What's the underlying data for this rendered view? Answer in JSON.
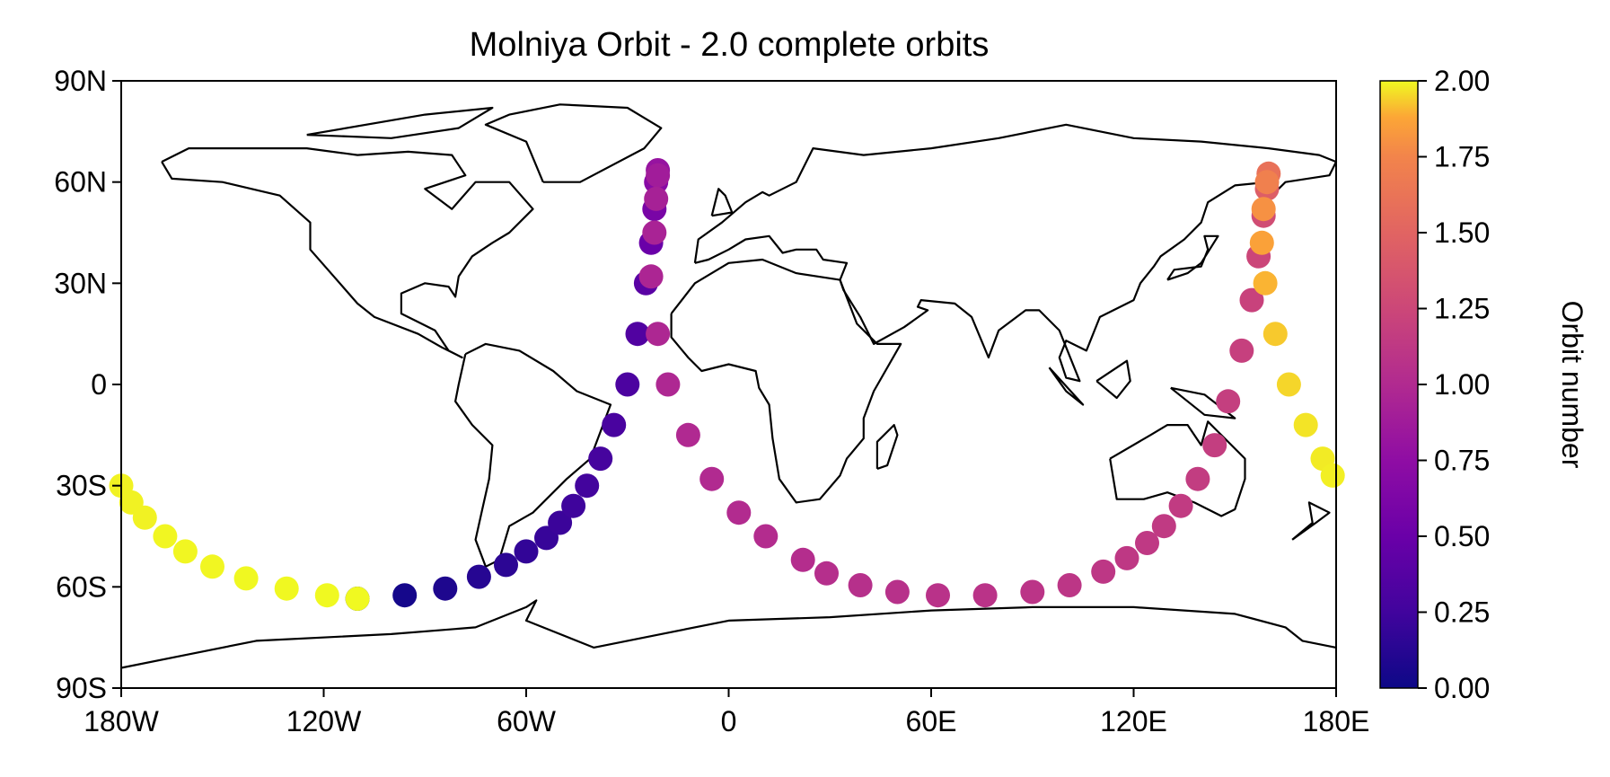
{
  "chart_data": {
    "type": "scatter",
    "title": "Molniya Orbit - 2.0 complete orbits",
    "xlabel": "",
    "ylabel": "",
    "xlim": [
      -180,
      180
    ],
    "ylim": [
      -90,
      90
    ],
    "x_ticks": [
      {
        "value": -180,
        "label": "180W"
      },
      {
        "value": -120,
        "label": "120W"
      },
      {
        "value": -60,
        "label": "60W"
      },
      {
        "value": 0,
        "label": "0"
      },
      {
        "value": 60,
        "label": "60E"
      },
      {
        "value": 120,
        "label": "120E"
      },
      {
        "value": 180,
        "label": "180E"
      }
    ],
    "y_ticks": [
      {
        "value": 90,
        "label": "90N"
      },
      {
        "value": 60,
        "label": "60N"
      },
      {
        "value": 30,
        "label": "30N"
      },
      {
        "value": 0,
        "label": "0"
      },
      {
        "value": -30,
        "label": "30S"
      },
      {
        "value": -60,
        "label": "60S"
      },
      {
        "value": -90,
        "label": "90S"
      }
    ],
    "colorbar": {
      "label": "Orbit number",
      "colormap": "plasma",
      "range": [
        0,
        2
      ],
      "ticks": [
        "0.00",
        "0.25",
        "0.50",
        "0.75",
        "1.00",
        "1.25",
        "1.50",
        "1.75",
        "2.00"
      ]
    },
    "background_layer": "coastlines",
    "grid": false,
    "series": [
      {
        "values": [
          {
            "lon": -110,
            "lat": -63.5,
            "orbit": 0.0
          },
          {
            "lon": -96,
            "lat": -62.5,
            "orbit": 0.04
          },
          {
            "lon": -84,
            "lat": -60.5,
            "orbit": 0.08
          },
          {
            "lon": -74,
            "lat": -57,
            "orbit": 0.12
          },
          {
            "lon": -66,
            "lat": -53.5,
            "orbit": 0.15
          },
          {
            "lon": -60,
            "lat": -49.5,
            "orbit": 0.18
          },
          {
            "lon": -54,
            "lat": -45.5,
            "orbit": 0.2
          },
          {
            "lon": -50,
            "lat": -41,
            "orbit": 0.22
          },
          {
            "lon": -46,
            "lat": -36,
            "orbit": 0.24
          },
          {
            "lon": -42,
            "lat": -30,
            "orbit": 0.26
          },
          {
            "lon": -38,
            "lat": -22,
            "orbit": 0.28
          },
          {
            "lon": -34,
            "lat": -12,
            "orbit": 0.3
          },
          {
            "lon": -30,
            "lat": 0,
            "orbit": 0.32
          },
          {
            "lon": -27,
            "lat": 15,
            "orbit": 0.35
          },
          {
            "lon": -24.5,
            "lat": 30,
            "orbit": 0.4
          },
          {
            "lon": -23,
            "lat": 42,
            "orbit": 0.5
          },
          {
            "lon": -22,
            "lat": 52,
            "orbit": 0.6
          },
          {
            "lon": -21.5,
            "lat": 60,
            "orbit": 0.7
          },
          {
            "lon": -21,
            "lat": 63.5,
            "orbit": 0.8
          },
          {
            "lon": -21,
            "lat": 62,
            "orbit": 0.88
          },
          {
            "lon": -21.5,
            "lat": 55,
            "orbit": 0.92
          },
          {
            "lon": -22,
            "lat": 45,
            "orbit": 0.94
          },
          {
            "lon": -23,
            "lat": 32,
            "orbit": 0.96
          },
          {
            "lon": -21,
            "lat": 15,
            "orbit": 0.97
          },
          {
            "lon": -18,
            "lat": 0,
            "orbit": 0.98
          },
          {
            "lon": -12,
            "lat": -15,
            "orbit": 0.99
          },
          {
            "lon": -5,
            "lat": -28,
            "orbit": 1.0
          },
          {
            "lon": 3,
            "lat": -38,
            "orbit": 1.01
          },
          {
            "lon": 11,
            "lat": -45,
            "orbit": 1.02
          },
          {
            "lon": 22,
            "lat": -52,
            "orbit": 1.03
          },
          {
            "lon": 29,
            "lat": -56,
            "orbit": 1.04
          },
          {
            "lon": 39,
            "lat": -59.5,
            "orbit": 1.05
          },
          {
            "lon": 50,
            "lat": -61.5,
            "orbit": 1.06
          },
          {
            "lon": 62,
            "lat": -62.5,
            "orbit": 1.07
          },
          {
            "lon": 76,
            "lat": -62.5,
            "orbit": 1.08
          },
          {
            "lon": 90,
            "lat": -61.5,
            "orbit": 1.09
          },
          {
            "lon": 101,
            "lat": -59.5,
            "orbit": 1.1
          },
          {
            "lon": 111,
            "lat": -55.5,
            "orbit": 1.11
          },
          {
            "lon": 118,
            "lat": -51.5,
            "orbit": 1.12
          },
          {
            "lon": 124,
            "lat": -47,
            "orbit": 1.13
          },
          {
            "lon": 129,
            "lat": -42,
            "orbit": 1.14
          },
          {
            "lon": 134,
            "lat": -36,
            "orbit": 1.15
          },
          {
            "lon": 139,
            "lat": -28,
            "orbit": 1.16
          },
          {
            "lon": 144,
            "lat": -18,
            "orbit": 1.17
          },
          {
            "lon": 148,
            "lat": -5,
            "orbit": 1.18
          },
          {
            "lon": 152,
            "lat": 10,
            "orbit": 1.19
          },
          {
            "lon": 155,
            "lat": 25,
            "orbit": 1.21
          },
          {
            "lon": 157,
            "lat": 38,
            "orbit": 1.24
          },
          {
            "lon": 158.5,
            "lat": 50,
            "orbit": 1.3
          },
          {
            "lon": 159.5,
            "lat": 58,
            "orbit": 1.45
          },
          {
            "lon": 160,
            "lat": 62.5,
            "orbit": 1.6
          },
          {
            "lon": 159.5,
            "lat": 60,
            "orbit": 1.72
          },
          {
            "lon": 158.5,
            "lat": 52,
            "orbit": 1.8
          },
          {
            "lon": 158,
            "lat": 42,
            "orbit": 1.86
          },
          {
            "lon": 159,
            "lat": 30,
            "orbit": 1.9
          },
          {
            "lon": 162,
            "lat": 15,
            "orbit": 1.93
          },
          {
            "lon": 166,
            "lat": 0,
            "orbit": 1.95
          },
          {
            "lon": 171,
            "lat": -12,
            "orbit": 1.97
          },
          {
            "lon": 176,
            "lat": -22,
            "orbit": 1.98
          },
          {
            "lon": 179,
            "lat": -27,
            "orbit": 1.985
          },
          {
            "lon": -180,
            "lat": -30,
            "orbit": 1.99
          },
          {
            "lon": -177,
            "lat": -35,
            "orbit": 1.99
          },
          {
            "lon": -173,
            "lat": -39.5,
            "orbit": 1.99
          },
          {
            "lon": -167,
            "lat": -45,
            "orbit": 1.995
          },
          {
            "lon": -161,
            "lat": -49.5,
            "orbit": 1.995
          },
          {
            "lon": -153,
            "lat": -54,
            "orbit": 1.995
          },
          {
            "lon": -143,
            "lat": -57.5,
            "orbit": 1.998
          },
          {
            "lon": -131,
            "lat": -60.5,
            "orbit": 1.998
          },
          {
            "lon": -119,
            "lat": -62.5,
            "orbit": 2.0
          },
          {
            "lon": -110,
            "lat": -63.5,
            "orbit": 2.0
          }
        ]
      }
    ]
  }
}
